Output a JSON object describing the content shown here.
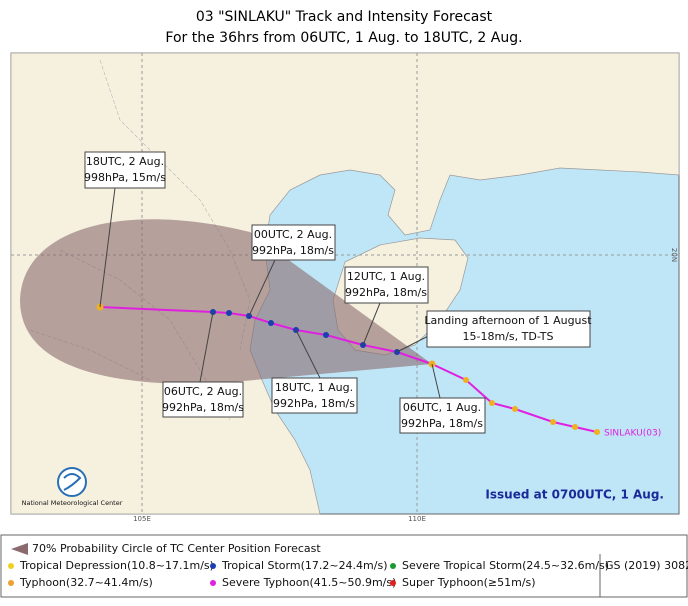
{
  "title": [
    "03 \"SINLAKU\" Track and Intensity Forecast",
    "For the 36hrs from 06UTC, 1 Aug. to 18UTC, 2 Aug."
  ],
  "map": {
    "axis_labels": [
      "105E",
      "110E",
      "20N"
    ],
    "storm_label": "SINLAKU(03)",
    "issued": "Issued at 0700UTC, 1 Aug.",
    "agency": "National Meteorological Center",
    "callouts": [
      {
        "time": "18UTC, 2 Aug.",
        "detail": "998hPa, 15m/s"
      },
      {
        "time": "00UTC, 2 Aug.",
        "detail": "992hPa, 18m/s"
      },
      {
        "time": "12UTC, 1 Aug.",
        "detail": "992hPa, 18m/s"
      },
      {
        "time": "Landing afternoon of 1 August",
        "detail": "15-18m/s, TD-TS"
      },
      {
        "time": "06UTC, 2 Aug.",
        "detail": "992hPa, 18m/s"
      },
      {
        "time": "18UTC, 1 Aug.",
        "detail": "992hPa, 18m/s"
      },
      {
        "time": "06UTC, 1 Aug.",
        "detail": "992hPa, 18m/s"
      }
    ]
  },
  "legend": {
    "cone": "70% Probability Circle of TC Center Position Forecast",
    "categories": [
      "Tropical Depression(10.8~17.1m/s)",
      "Tropical Storm(17.2~24.4m/s)",
      "Severe Tropical Storm(24.5~32.6m/s)",
      "Typhoon(32.7~41.4m/s)",
      "Severe Typhoon(41.5~50.9m/s)",
      "Super Typhoon(≥51m/s)"
    ],
    "gs": "GS (2019) 3082"
  }
}
